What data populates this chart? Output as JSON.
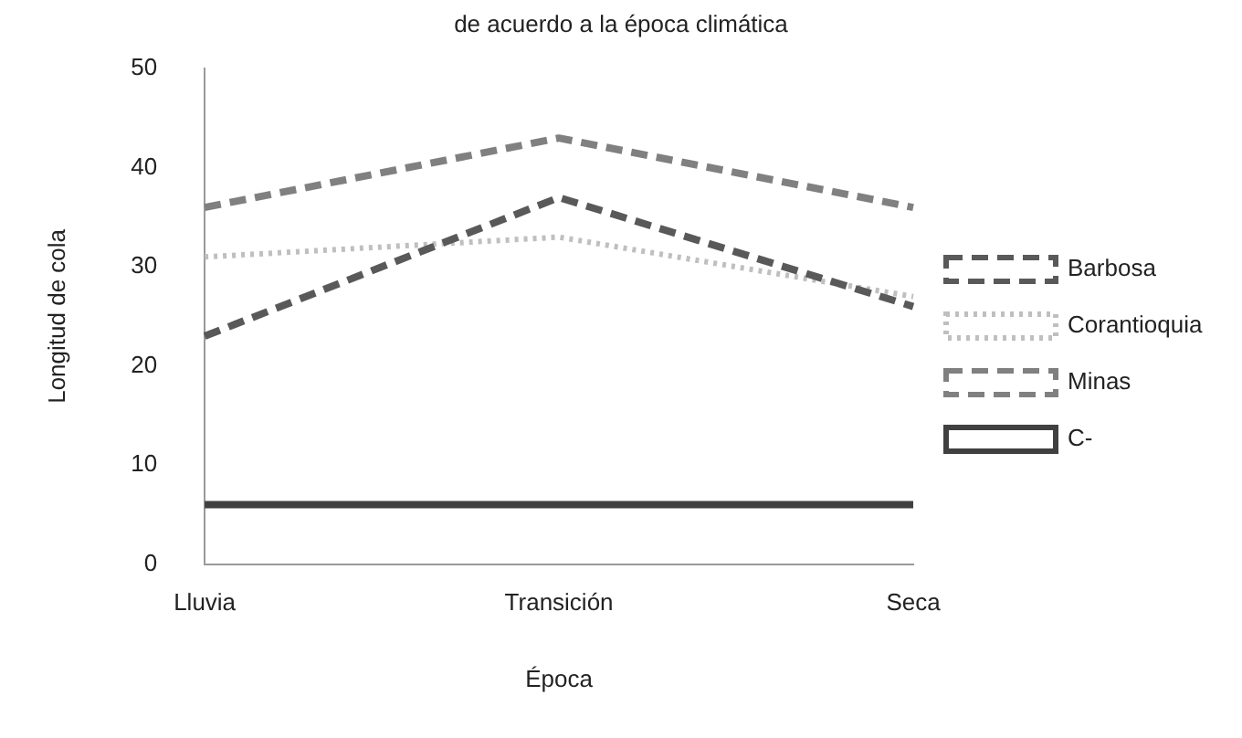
{
  "chart_data": {
    "type": "line",
    "title": "de acuerdo a la época climática",
    "xlabel": "Época",
    "ylabel": "Longitud de cola",
    "categories": [
      "Lluvia",
      "Transición",
      "Seca"
    ],
    "series": [
      {
        "name": "Barbosa",
        "color": "#595959",
        "values": [
          23,
          37,
          26
        ],
        "line_style": "dashed"
      },
      {
        "name": "Corantioquia",
        "color": "#bfbfbf",
        "values": [
          31,
          33,
          27
        ],
        "line_style": "dotted"
      },
      {
        "name": "Minas",
        "color": "#808080",
        "values": [
          36,
          43,
          36
        ],
        "line_style": "dashed"
      },
      {
        "name": "C-",
        "color": "#404040",
        "values": [
          6,
          6,
          6
        ],
        "line_style": "solid"
      }
    ],
    "ylim": [
      0,
      50
    ],
    "yticks": [
      0,
      10,
      20,
      30,
      40,
      50
    ],
    "grid": false,
    "legend": "right",
    "marker": "none"
  }
}
